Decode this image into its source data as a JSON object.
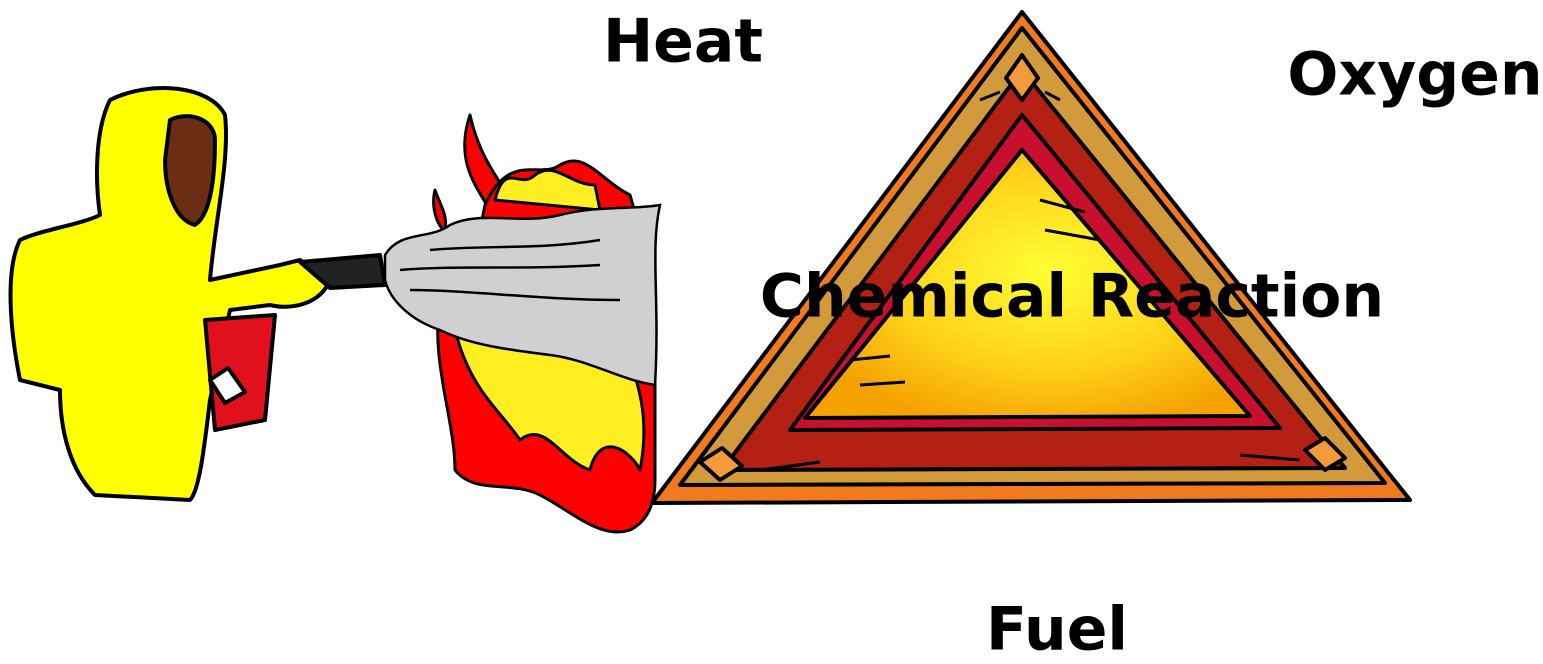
{
  "labels": {
    "heat": "Heat",
    "oxygen": "Oxygen",
    "chemical_reaction": "Chemical Reaction",
    "fuel": "Fuel"
  }
}
